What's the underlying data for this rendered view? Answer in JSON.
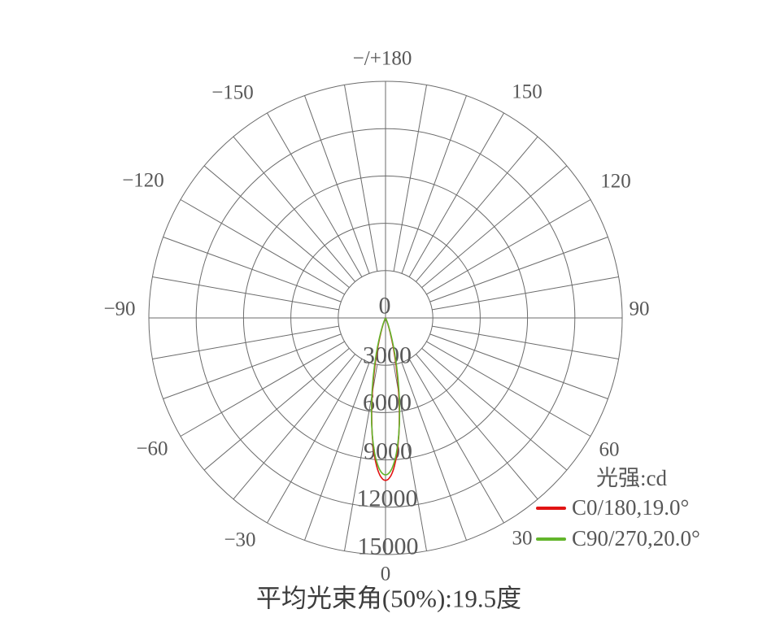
{
  "chart_data": {
    "type": "polar",
    "subtype": "photometric-intensity-distribution",
    "title": "平均光束角(50%):19.5度",
    "legend": {
      "title": "光强:cd",
      "position": "right-bottom"
    },
    "radial_axis": {
      "unit": "cd",
      "min": 0,
      "max": 15000,
      "step": 3000,
      "tick_labels": [
        "0",
        "3000",
        "6000",
        "9000",
        "12000",
        "15000"
      ]
    },
    "angle_axis": {
      "grid_step_deg": 10,
      "label_step_deg": 30,
      "zero_position": "bottom",
      "labels": [
        "−/+180",
        "−150",
        "150",
        "−120",
        "120",
        "−90",
        "90",
        "−60",
        "60",
        "−30",
        "30",
        "0"
      ]
    },
    "series": [
      {
        "name": "C0/180,19.0°",
        "plane": "C0/180",
        "beam_angle_deg": 19.0,
        "peak_cd": 10300,
        "color": "#e11414"
      },
      {
        "name": "C90/270,20.0°",
        "plane": "C90/270",
        "beam_angle_deg": 20.0,
        "peak_cd": 9950,
        "color": "#62b52b"
      }
    ],
    "grid": {
      "rings": 5,
      "color": "#6b6b6b"
    }
  }
}
